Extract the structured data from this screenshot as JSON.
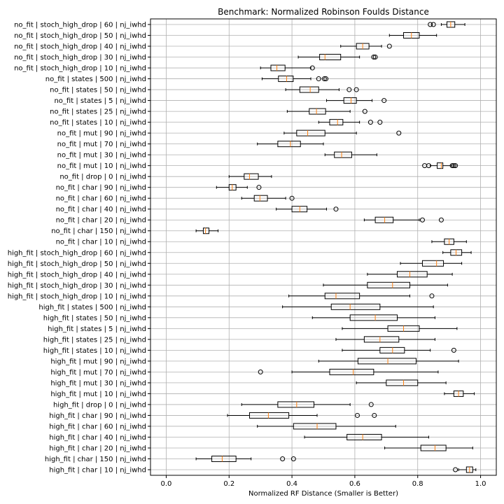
{
  "chart_data": {
    "type": "boxplot",
    "orientation": "horizontal",
    "title": "Benchmark: Normalized Robinson Foulds Distance",
    "xlabel": "Normalized RF Distance (Smaller is Better)",
    "xlim": [
      -0.05,
      1.05
    ],
    "xticks": [
      0.0,
      0.2,
      0.4,
      0.6,
      0.8,
      1.0
    ],
    "xtick_labels": [
      "0.0",
      "0.2",
      "0.4",
      "0.6",
      "0.8",
      "1.0"
    ],
    "grid": true,
    "median_color": "#ff7f0e",
    "categories": [
      {
        "label": "no_fit | stoch_high_drop | 60 | nj_iwhd",
        "min": 0.875,
        "q1": 0.893,
        "median": 0.905,
        "q3": 0.918,
        "max": 0.95,
        "outliers": [
          0.84,
          0.85
        ]
      },
      {
        "label": "no_fit | stoch_high_drop | 50 | nj_iwhd",
        "min": 0.71,
        "q1": 0.755,
        "median": 0.78,
        "q3": 0.805,
        "max": 0.86,
        "outliers": []
      },
      {
        "label": "no_fit | stoch_high_drop | 40 | nj_iwhd",
        "min": 0.555,
        "q1": 0.605,
        "median": 0.625,
        "q3": 0.645,
        "max": 0.685,
        "outliers": [
          0.71
        ]
      },
      {
        "label": "no_fit | stoch_high_drop | 30 | nj_iwhd",
        "min": 0.42,
        "q1": 0.488,
        "median": 0.505,
        "q3": 0.555,
        "max": 0.615,
        "outliers": [
          0.66,
          0.665
        ]
      },
      {
        "label": "no_fit | stoch_high_drop | 10 | nj_iwhd",
        "min": 0.3,
        "q1": 0.333,
        "median": 0.352,
        "q3": 0.378,
        "max": 0.46,
        "outliers": [
          0.465
        ]
      },
      {
        "label": "no_fit | states | 500 | nj_iwhd",
        "min": 0.305,
        "q1": 0.357,
        "median": 0.383,
        "q3": 0.404,
        "max": 0.46,
        "outliers": [
          0.485,
          0.503,
          0.508
        ]
      },
      {
        "label": "no_fit | states | 50 | nj_iwhd",
        "min": 0.38,
        "q1": 0.425,
        "median": 0.458,
        "q3": 0.485,
        "max": 0.55,
        "outliers": [
          0.582,
          0.605
        ]
      },
      {
        "label": "no_fit | states | 5 | nj_iwhd",
        "min": 0.51,
        "q1": 0.565,
        "median": 0.588,
        "q3": 0.605,
        "max": 0.655,
        "outliers": [
          0.693
        ]
      },
      {
        "label": "no_fit | states | 25 | nj_iwhd",
        "min": 0.385,
        "q1": 0.455,
        "median": 0.478,
        "q3": 0.507,
        "max": 0.585,
        "outliers": [
          0.632
        ]
      },
      {
        "label": "no_fit | states | 10 | nj_iwhd",
        "min": 0.485,
        "q1": 0.52,
        "median": 0.545,
        "q3": 0.562,
        "max": 0.615,
        "outliers": [
          0.65,
          0.68
        ]
      },
      {
        "label": "no_fit | mut | 90 | nj_iwhd",
        "min": 0.375,
        "q1": 0.415,
        "median": 0.45,
        "q3": 0.505,
        "max": 0.605,
        "outliers": [
          0.74
        ]
      },
      {
        "label": "no_fit | mut | 70 | nj_iwhd",
        "min": 0.29,
        "q1": 0.355,
        "median": 0.395,
        "q3": 0.427,
        "max": 0.5,
        "outliers": []
      },
      {
        "label": "no_fit | mut | 30 | nj_iwhd",
        "min": 0.505,
        "q1": 0.535,
        "median": 0.558,
        "q3": 0.59,
        "max": 0.67,
        "outliers": []
      },
      {
        "label": "no_fit | mut | 10 | nj_iwhd",
        "min": 0.84,
        "q1": 0.862,
        "median": 0.875,
        "q3": 0.88,
        "max": 0.905,
        "outliers": [
          0.822,
          0.835,
          0.91,
          0.915,
          0.92
        ]
      },
      {
        "label": "no_fit | drop | 0 | nj_iwhd",
        "min": 0.2,
        "q1": 0.248,
        "median": 0.265,
        "q3": 0.293,
        "max": 0.335,
        "outliers": []
      },
      {
        "label": "no_fit | char | 90 | nj_iwhd",
        "min": 0.16,
        "q1": 0.2,
        "median": 0.21,
        "q3": 0.222,
        "max": 0.258,
        "outliers": [
          0.295
        ]
      },
      {
        "label": "no_fit | char | 60 | nj_iwhd",
        "min": 0.24,
        "q1": 0.28,
        "median": 0.298,
        "q3": 0.322,
        "max": 0.38,
        "outliers": [
          0.4
        ]
      },
      {
        "label": "no_fit | char | 40 | nj_iwhd",
        "min": 0.35,
        "q1": 0.4,
        "median": 0.425,
        "q3": 0.448,
        "max": 0.51,
        "outliers": [
          0.54
        ]
      },
      {
        "label": "no_fit | char | 20 | nj_iwhd",
        "min": 0.63,
        "q1": 0.665,
        "median": 0.695,
        "q3": 0.722,
        "max": 0.805,
        "outliers": [
          0.815,
          0.875
        ]
      },
      {
        "label": "no_fit | char | 150 | nj_iwhd",
        "min": 0.095,
        "q1": 0.118,
        "median": 0.125,
        "q3": 0.136,
        "max": 0.165,
        "outliers": []
      },
      {
        "label": "no_fit | char | 10 | nj_iwhd",
        "min": 0.845,
        "q1": 0.885,
        "median": 0.9,
        "q3": 0.915,
        "max": 0.955,
        "outliers": []
      },
      {
        "label": "high_fit | stoch_high_drop | 60 | nj_iwhd",
        "min": 0.88,
        "q1": 0.905,
        "median": 0.922,
        "q3": 0.94,
        "max": 0.97,
        "outliers": []
      },
      {
        "label": "high_fit | stoch_high_drop | 50 | nj_iwhd",
        "min": 0.745,
        "q1": 0.815,
        "median": 0.86,
        "q3": 0.882,
        "max": 0.94,
        "outliers": []
      },
      {
        "label": "high_fit | stoch_high_drop | 40 | nj_iwhd",
        "min": 0.64,
        "q1": 0.735,
        "median": 0.775,
        "q3": 0.83,
        "max": 0.91,
        "outliers": []
      },
      {
        "label": "high_fit | stoch_high_drop | 30 | nj_iwhd",
        "min": 0.5,
        "q1": 0.64,
        "median": 0.72,
        "q3": 0.775,
        "max": 0.895,
        "outliers": []
      },
      {
        "label": "high_fit | stoch_high_drop | 10 | nj_iwhd",
        "min": 0.39,
        "q1": 0.505,
        "median": 0.54,
        "q3": 0.615,
        "max": 0.775,
        "outliers": [
          0.845
        ]
      },
      {
        "label": "high_fit | states | 500 | nj_iwhd",
        "min": 0.37,
        "q1": 0.525,
        "median": 0.585,
        "q3": 0.68,
        "max": 0.85,
        "outliers": []
      },
      {
        "label": "high_fit | states | 50 | nj_iwhd",
        "min": 0.465,
        "q1": 0.585,
        "median": 0.665,
        "q3": 0.735,
        "max": 0.855,
        "outliers": []
      },
      {
        "label": "high_fit | states | 5 | nj_iwhd",
        "min": 0.56,
        "q1": 0.705,
        "median": 0.755,
        "q3": 0.805,
        "max": 0.925,
        "outliers": []
      },
      {
        "label": "high_fit | states | 25 | nj_iwhd",
        "min": 0.54,
        "q1": 0.63,
        "median": 0.68,
        "q3": 0.74,
        "max": 0.855,
        "outliers": []
      },
      {
        "label": "high_fit | states | 10 | nj_iwhd",
        "min": 0.56,
        "q1": 0.68,
        "median": 0.72,
        "q3": 0.758,
        "max": 0.84,
        "outliers": [
          0.915
        ]
      },
      {
        "label": "high_fit | mut | 90 | nj_iwhd",
        "min": 0.485,
        "q1": 0.61,
        "median": 0.705,
        "q3": 0.795,
        "max": 0.93,
        "outliers": []
      },
      {
        "label": "high_fit | mut | 70 | nj_iwhd",
        "min": 0.4,
        "q1": 0.52,
        "median": 0.595,
        "q3": 0.66,
        "max": 0.865,
        "outliers": [
          0.3
        ]
      },
      {
        "label": "high_fit | mut | 30 | nj_iwhd",
        "min": 0.605,
        "q1": 0.7,
        "median": 0.755,
        "q3": 0.8,
        "max": 0.89,
        "outliers": []
      },
      {
        "label": "high_fit | mut | 10 | nj_iwhd",
        "min": 0.885,
        "q1": 0.915,
        "median": 0.93,
        "q3": 0.945,
        "max": 0.98,
        "outliers": []
      },
      {
        "label": "high_fit | drop | 0 | nj_iwhd",
        "min": 0.24,
        "q1": 0.355,
        "median": 0.415,
        "q3": 0.47,
        "max": 0.585,
        "outliers": [
          0.652
        ]
      },
      {
        "label": "high_fit | char | 90 | nj_iwhd",
        "min": 0.195,
        "q1": 0.265,
        "median": 0.325,
        "q3": 0.39,
        "max": 0.48,
        "outliers": [
          0.608,
          0.662
        ]
      },
      {
        "label": "high_fit | char | 60 | nj_iwhd",
        "min": 0.29,
        "q1": 0.405,
        "median": 0.48,
        "q3": 0.54,
        "max": 0.73,
        "outliers": []
      },
      {
        "label": "high_fit | char | 40 | nj_iwhd",
        "min": 0.44,
        "q1": 0.575,
        "median": 0.625,
        "q3": 0.685,
        "max": 0.835,
        "outliers": []
      },
      {
        "label": "high_fit | char | 20 | nj_iwhd",
        "min": 0.695,
        "q1": 0.81,
        "median": 0.855,
        "q3": 0.89,
        "max": 0.975,
        "outliers": []
      },
      {
        "label": "high_fit | char | 150 | nj_iwhd",
        "min": 0.095,
        "q1": 0.145,
        "median": 0.178,
        "q3": 0.222,
        "max": 0.27,
        "outliers": [
          0.37,
          0.405
        ]
      },
      {
        "label": "high_fit | char | 10 | nj_iwhd",
        "min": 0.93,
        "q1": 0.955,
        "median": 0.965,
        "q3": 0.975,
        "max": 0.985,
        "outliers": [
          0.92
        ]
      }
    ]
  }
}
